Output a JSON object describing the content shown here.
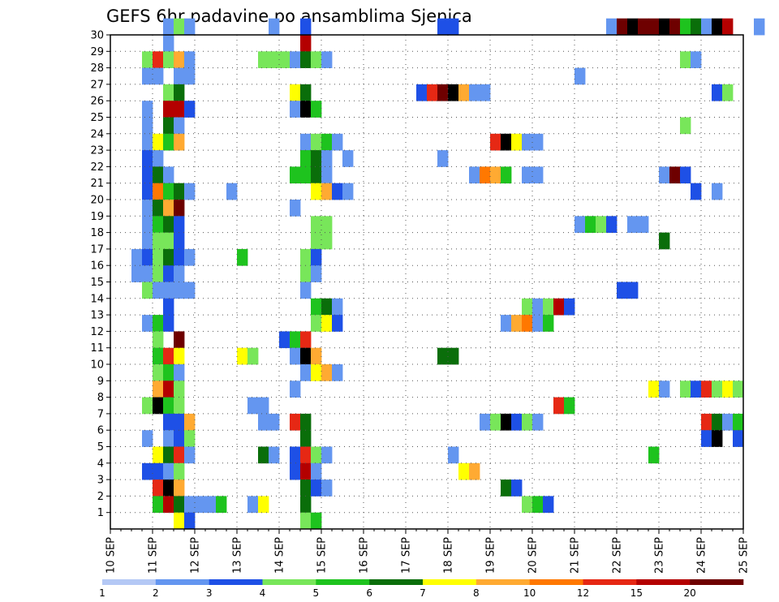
{
  "chart_data": {
    "type": "heatmap",
    "title": "GEFS 6hr padavine po ansamblima Sjenica",
    "xlabel": "",
    "ylabel": "",
    "x_ticks": [
      "10 SEP",
      "11 SEP",
      "12 SEP",
      "13 SEP",
      "14 SEP",
      "15 SEP",
      "16 SEP",
      "17 SEP",
      "18 SEP",
      "19 SEP",
      "20 SEP",
      "21 SEP",
      "22 SEP",
      "23 SEP",
      "24 SEP",
      "25 SEP"
    ],
    "y_ticks": [
      "1",
      "2",
      "3",
      "4",
      "5",
      "6",
      "7",
      "8",
      "9",
      "10",
      "11",
      "12",
      "13",
      "14",
      "15",
      "16",
      "17",
      "18",
      "19",
      "20",
      "21",
      "22",
      "23",
      "24",
      "25",
      "26",
      "27",
      "28",
      "29",
      "30"
    ],
    "xlim": [
      0,
      60
    ],
    "ylim": [
      0,
      30
    ],
    "grid": true,
    "colorbar": {
      "labels": [
        "1",
        "2",
        "3",
        "4",
        "5",
        "6",
        "7",
        "8",
        "10",
        "12",
        "15",
        "20"
      ],
      "colors": [
        "#b4c8f5",
        "#6496f0",
        "#1e50e6",
        "#78e65a",
        "#1ec31e",
        "#0a6e0a",
        "#ffff00",
        "#ffaa32",
        "#ff7800",
        "#e62814",
        "#b40000",
        "#6e0000"
      ]
    },
    "cells": [
      [
        30,
        "5:1",
        "6:3",
        "7:1",
        "15:1",
        "18:2",
        "31:2",
        "32:2",
        "47:1",
        "48:11",
        "49:12",
        "50:11",
        "51:11",
        "52:12",
        "53:11",
        "54:4",
        "55:5",
        "56:1",
        "57:12",
        "58:10",
        "61:1"
      ],
      [
        29,
        "5:1",
        "18:10"
      ],
      [
        28,
        "3:3",
        "4:9",
        "5:3",
        "6:7",
        "7:1",
        "14:3",
        "15:3",
        "16:3",
        "17:1",
        "18:5",
        "19:3",
        "20:1",
        "54:3",
        "55:1"
      ],
      [
        27,
        "3:1",
        "4:1",
        "6:1",
        "7:1",
        "44:1"
      ],
      [
        26,
        "5:3",
        "6:5",
        "17:6",
        "18:5",
        "29:2",
        "30:9",
        "31:11",
        "32:12",
        "33:7",
        "34:1",
        "35:1",
        "57:2",
        "58:3"
      ],
      [
        25,
        "3:1",
        "5:10",
        "6:10",
        "7:2",
        "17:1",
        "18:12",
        "19:4"
      ],
      [
        24,
        "3:1",
        "5:5",
        "6:1",
        "54:3"
      ],
      [
        23,
        "3:1",
        "4:6",
        "5:4",
        "6:7",
        "18:1",
        "19:3",
        "20:4",
        "21:1",
        "36:9",
        "37:12",
        "38:6",
        "39:1",
        "40:1"
      ],
      [
        22,
        "3:2",
        "4:1",
        "18:4",
        "19:5",
        "20:1",
        "22:1",
        "31:1"
      ],
      [
        21,
        "3:2",
        "4:5",
        "5:1",
        "17:4",
        "18:4",
        "19:5",
        "20:1",
        "34:1",
        "35:8",
        "36:7",
        "37:4",
        "39:1",
        "40:1",
        "52:1",
        "53:11",
        "54:2"
      ],
      [
        20,
        "3:2",
        "4:8",
        "5:4",
        "6:5",
        "7:1",
        "11:1",
        "19:6",
        "20:7",
        "21:2",
        "22:1",
        "55:2",
        "57:1"
      ],
      [
        19,
        "3:1",
        "4:5",
        "5:7",
        "6:11",
        "17:1"
      ],
      [
        18,
        "3:1",
        "4:4",
        "5:5",
        "6:2",
        "19:3",
        "20:3",
        "44:1",
        "45:4",
        "46:3",
        "47:2",
        "49:1",
        "50:1"
      ],
      [
        17,
        "3:1",
        "4:3",
        "5:3",
        "6:2",
        "19:3",
        "20:3",
        "52:5"
      ],
      [
        16,
        "2:1",
        "3:2",
        "4:3",
        "5:5",
        "6:2",
        "7:1",
        "12:4",
        "18:3",
        "19:2"
      ],
      [
        15,
        "2:1",
        "3:1",
        "4:3",
        "5:2",
        "6:1",
        "18:3",
        "19:1"
      ],
      [
        14,
        "3:3",
        "4:1",
        "5:1",
        "6:1",
        "7:1",
        "18:1",
        "48:2",
        "49:2"
      ],
      [
        13,
        "5:2",
        "19:4",
        "20:5",
        "21:1",
        "39:3",
        "40:1",
        "41:3",
        "42:10",
        "43:2"
      ],
      [
        12,
        "3:1",
        "4:4",
        "5:2",
        "19:3",
        "20:6",
        "21:2",
        "37:1",
        "38:7",
        "39:8",
        "40:1",
        "41:4"
      ],
      [
        11,
        "4:3",
        "6:11",
        "16:2",
        "17:4",
        "18:9"
      ],
      [
        10,
        "4:4",
        "5:9",
        "6:6",
        "12:6",
        "13:3",
        "17:1",
        "18:12",
        "19:7",
        "31:5",
        "32:5"
      ],
      [
        9,
        "4:3",
        "5:4",
        "6:1",
        "18:1",
        "19:6",
        "20:7",
        "21:1"
      ],
      [
        8,
        "4:7",
        "5:10",
        "6:3",
        "17:1",
        "51:6",
        "52:1",
        "54:3",
        "55:2",
        "56:9",
        "57:3",
        "58:6",
        "59:3"
      ],
      [
        7,
        "3:3",
        "4:12",
        "5:4",
        "6:3",
        "13:1",
        "14:1",
        "42:9",
        "43:4"
      ],
      [
        6,
        "5:2",
        "6:2",
        "7:7",
        "14:1",
        "15:1",
        "17:9",
        "18:5",
        "35:1",
        "36:3",
        "37:12",
        "38:2",
        "39:3",
        "40:1",
        "56:9",
        "57:5",
        "58:1",
        "59:4"
      ],
      [
        5,
        "3:1",
        "5:1",
        "6:2",
        "7:3",
        "18:5",
        "56:2",
        "57:12",
        "59:2"
      ],
      [
        4,
        "4:6",
        "5:5",
        "6:9",
        "7:1",
        "14:5",
        "15:1",
        "17:2",
        "18:9",
        "19:3",
        "20:1",
        "32:1",
        "51:4"
      ],
      [
        3,
        "3:2",
        "4:2",
        "5:1",
        "6:3",
        "17:2",
        "18:10",
        "19:1",
        "33:6",
        "34:7"
      ],
      [
        2,
        "4:9",
        "5:12",
        "6:7",
        "18:5",
        "19:2",
        "20:1",
        "37:5",
        "38:2"
      ],
      [
        1,
        "4:4",
        "5:10",
        "6:5",
        "7:1",
        "8:1",
        "9:1",
        "10:4",
        "13:1",
        "14:6",
        "18:5",
        "39:3",
        "40:4",
        "41:2"
      ],
      [
        0,
        "6:6",
        "7:2",
        "18:3",
        "19:4"
      ]
    ]
  }
}
